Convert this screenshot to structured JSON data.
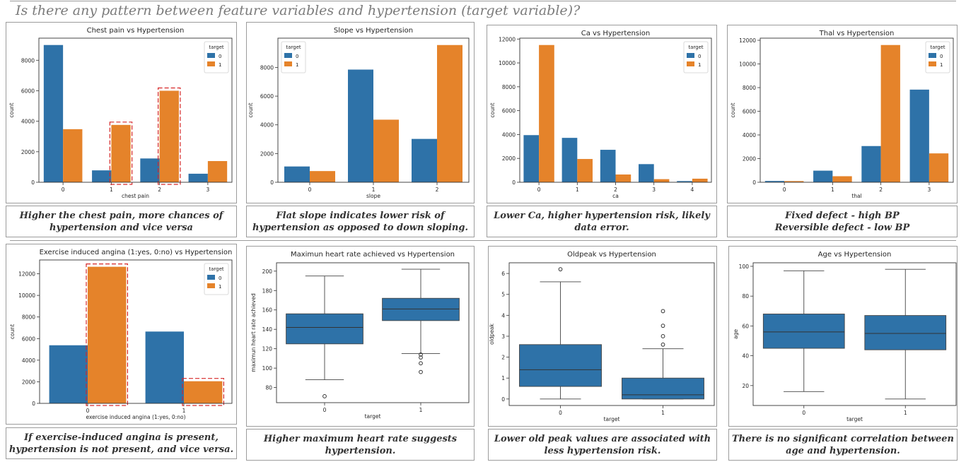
{
  "header": {
    "title": "Is there any pattern between feature variables and hypertension (target variable)?"
  },
  "captions": [
    "Higher the chest pain, more chances of\nhypertension and vice versa",
    "Flat slope indicates lower risk of\nhypertension as opposed to down sloping.",
    "Lower Ca, higher hypertension risk, likely\ndata error.",
    "Fixed defect - high BP\nReversible defect - low BP",
    "If exercise-induced angina is present,\nhypertension is not present, and vice versa.",
    "Higher maximum heart rate suggests\nhypertension.",
    "Lower old peak values are associated with\nless hypertension risk.",
    "There is no significant correlation between\nage and hypertension."
  ],
  "colors": {
    "series0": "#2e72a8",
    "series1": "#e5832a",
    "highlight": "#d62728"
  },
  "chart_data": [
    {
      "type": "bar",
      "title": "Chest pain vs Hypertension",
      "xlabel": "chest pain",
      "ylabel": "count",
      "categories": [
        "0",
        "1",
        "2",
        "3"
      ],
      "series": [
        {
          "name": "0",
          "values": [
            9000,
            780,
            1560,
            560
          ]
        },
        {
          "name": "1",
          "values": [
            3480,
            3760,
            6000,
            1390
          ]
        }
      ],
      "ylim": [
        0,
        9450
      ],
      "yticks": [
        0,
        2000,
        4000,
        6000,
        8000
      ],
      "legend": {
        "title": "target",
        "position": "top-right"
      },
      "highlights": [
        1,
        2
      ]
    },
    {
      "type": "bar",
      "title": "Slope vs Hypertension",
      "xlabel": "slope",
      "ylabel": "count",
      "categories": [
        "0",
        "1",
        "2"
      ],
      "series": [
        {
          "name": "0",
          "values": [
            1100,
            7850,
            3020
          ]
        },
        {
          "name": "1",
          "values": [
            780,
            4360,
            9560
          ]
        }
      ],
      "ylim": [
        0,
        10040
      ],
      "yticks": [
        0,
        2000,
        4000,
        6000,
        8000
      ],
      "legend": {
        "title": "target",
        "position": "top-left"
      }
    },
    {
      "type": "bar",
      "title": "Ca vs Hypertension",
      "xlabel": "ca",
      "ylabel": "count",
      "categories": [
        "0",
        "1",
        "2",
        "3",
        "4"
      ],
      "series": [
        {
          "name": "0",
          "values": [
            3950,
            3720,
            2720,
            1520,
            100
          ]
        },
        {
          "name": "1",
          "values": [
            11500,
            1950,
            650,
            260,
            300
          ]
        }
      ],
      "ylim": [
        0,
        12075
      ],
      "yticks": [
        0,
        2000,
        4000,
        6000,
        8000,
        10000,
        12000
      ],
      "legend": {
        "title": "target",
        "position": "top-right"
      }
    },
    {
      "type": "bar",
      "title": "Thal vs Hypertension",
      "xlabel": "thal",
      "ylabel": "count",
      "categories": [
        "0",
        "1",
        "2",
        "3"
      ],
      "series": [
        {
          "name": "0",
          "values": [
            110,
            980,
            3060,
            7830
          ]
        },
        {
          "name": "1",
          "values": [
            100,
            510,
            11600,
            2440
          ]
        }
      ],
      "ylim": [
        0,
        12180
      ],
      "yticks": [
        0,
        2000,
        4000,
        6000,
        8000,
        10000,
        12000
      ],
      "legend": {
        "title": "target",
        "position": "top-right"
      }
    },
    {
      "type": "bar",
      "title": "Exercise induced angina (1:yes, 0:no) vs Hypertension",
      "xlabel": "exercise induced angina (1:yes, 0:no)",
      "ylabel": "count",
      "categories": [
        "0",
        "1"
      ],
      "series": [
        {
          "name": "0",
          "values": [
            5380,
            6650
          ]
        },
        {
          "name": "1",
          "values": [
            12650,
            2050
          ]
        }
      ],
      "ylim": [
        0,
        13280
      ],
      "yticks": [
        0,
        2000,
        4000,
        6000,
        8000,
        10000,
        12000
      ],
      "legend": {
        "title": "target",
        "position": "top-right"
      },
      "highlights": [
        0,
        1
      ]
    },
    {
      "type": "box",
      "title": "Maximun heart rate achieved vs Hypertension",
      "xlabel": "target",
      "ylabel": "maximun heart rate achieved",
      "categories": [
        "0",
        "1"
      ],
      "boxes": [
        {
          "min": 88,
          "q1": 125,
          "median": 142,
          "q3": 156,
          "max": 195,
          "outliers": [
            71
          ]
        },
        {
          "min": 115,
          "q1": 149,
          "median": 161,
          "q3": 172,
          "max": 202,
          "outliers": [
            114,
            111,
            105,
            96
          ]
        }
      ],
      "ylim": [
        64.4,
        208.6
      ],
      "yticks": [
        80,
        100,
        120,
        140,
        160,
        180,
        200
      ]
    },
    {
      "type": "box",
      "title": "Oldpeak vs Hypertension",
      "xlabel": "target",
      "ylabel": "oldpeak",
      "categories": [
        "0",
        "1"
      ],
      "boxes": [
        {
          "min": 0,
          "q1": 0.6,
          "median": 1.4,
          "q3": 2.6,
          "max": 5.6,
          "outliers": [
            6.2
          ]
        },
        {
          "min": 0,
          "q1": 0,
          "median": 0.2,
          "q3": 1.0,
          "max": 2.4,
          "outliers": [
            2.6,
            3.0,
            3.5,
            4.2
          ]
        }
      ],
      "ylim": [
        -0.31,
        6.51
      ],
      "yticks": [
        0,
        1,
        2,
        3,
        4,
        5,
        6
      ]
    },
    {
      "type": "box",
      "title": "Age vs Hypertension",
      "xlabel": "target",
      "ylabel": "age",
      "categories": [
        "0",
        "1"
      ],
      "boxes": [
        {
          "min": 16,
          "q1": 45,
          "median": 56,
          "q3": 68,
          "max": 97,
          "outliers": []
        },
        {
          "min": 11,
          "q1": 44,
          "median": 55,
          "q3": 67,
          "max": 98,
          "outliers": []
        }
      ],
      "ylim": [
        6.65,
        102.35
      ],
      "yticks": [
        20,
        40,
        60,
        80,
        100
      ]
    }
  ]
}
